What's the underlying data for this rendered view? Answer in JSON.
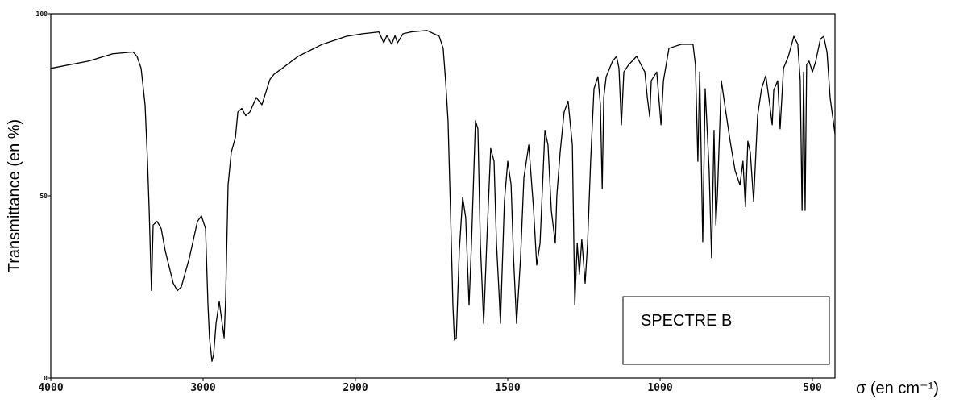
{
  "chart_data": {
    "type": "line",
    "xlabel": "σ (en cm⁻¹)",
    "ylabel": "Transmittance (en %)",
    "annotation": "SPECTRE B",
    "color": "#000000",
    "xlim": [
      4000,
      426
    ],
    "ylim": [
      0,
      100
    ],
    "xticks": [
      4000,
      3000,
      2000,
      1500,
      1000,
      500
    ],
    "yticks": [
      0,
      50,
      100
    ],
    "xscale_change": 2000,
    "xscale_factor": 2,
    "x": [
      4000,
      3751,
      3593,
      3460,
      3434,
      3407,
      3381,
      3365,
      3354,
      3344,
      3339,
      3328,
      3302,
      3275,
      3249,
      3196,
      3169,
      3143,
      3090,
      3037,
      3011,
      2984,
      2968,
      2958,
      2942,
      2931,
      2915,
      2894,
      2878,
      2862,
      2852,
      2836,
      2815,
      2788,
      2772,
      2746,
      2720,
      2693,
      2651,
      2614,
      2561,
      2534,
      2481,
      2376,
      2217,
      2058,
      1976,
      1923,
      1907,
      1897,
      1881,
      1870,
      1862,
      1844,
      1817,
      1765,
      1725,
      1712,
      1704,
      1696,
      1688,
      1680,
      1675,
      1669,
      1659,
      1648,
      1638,
      1627,
      1619,
      1606,
      1598,
      1590,
      1579,
      1569,
      1556,
      1545,
      1537,
      1529,
      1524,
      1511,
      1500,
      1489,
      1481,
      1471,
      1458,
      1447,
      1431,
      1415,
      1405,
      1394,
      1378,
      1368,
      1357,
      1344,
      1339,
      1328,
      1315,
      1302,
      1288,
      1280,
      1272,
      1265,
      1257,
      1246,
      1238,
      1228,
      1217,
      1204,
      1196,
      1190,
      1185,
      1177,
      1156,
      1143,
      1135,
      1127,
      1119,
      1103,
      1077,
      1050,
      1042,
      1034,
      1029,
      1011,
      997,
      989,
      971,
      931,
      892,
      884,
      876,
      870,
      860,
      852,
      839,
      831,
      823,
      817,
      812,
      799,
      786,
      770,
      754,
      738,
      728,
      720,
      712,
      704,
      693,
      680,
      667,
      653,
      640,
      632,
      627,
      614,
      606,
      595,
      579,
      561,
      548,
      540,
      534,
      529,
      524,
      519,
      511,
      500,
      489,
      474,
      463,
      452,
      442,
      426
    ],
    "values": [
      85,
      87,
      89,
      89.5,
      88.3,
      85,
      75,
      59.5,
      46,
      31,
      24,
      42,
      43,
      41,
      35,
      26,
      24,
      25,
      33,
      43,
      44.5,
      41,
      20,
      11,
      4.6,
      6.4,
      15,
      21,
      16,
      11,
      22,
      53,
      62,
      66,
      73,
      74,
      72,
      73,
      77,
      75,
      82,
      83.4,
      85,
      88.3,
      91.6,
      93.8,
      94.5,
      95,
      92,
      94,
      91.6,
      94,
      92,
      94.5,
      95,
      95.4,
      93.8,
      90.5,
      81.6,
      70.6,
      46,
      20,
      10.4,
      11,
      35,
      49.6,
      44,
      20,
      37,
      70.6,
      68.4,
      37,
      15,
      37,
      63,
      59.5,
      37,
      24,
      15,
      48.5,
      59.5,
      53,
      33,
      15,
      33,
      55,
      64,
      46,
      31,
      37,
      68,
      64,
      46,
      37,
      50,
      62,
      73,
      76,
      64,
      20,
      37,
      28.5,
      38,
      26,
      37,
      59.5,
      79.4,
      82.7,
      75,
      52,
      77,
      82.7,
      87,
      88.3,
      85,
      69.5,
      84,
      86,
      88.3,
      84,
      77,
      71.7,
      81.6,
      84,
      69.5,
      81.6,
      90.5,
      91.6,
      91.6,
      86,
      59.5,
      84,
      37.4,
      79.4,
      57,
      33,
      68,
      42,
      50,
      81.6,
      74,
      65,
      57,
      53,
      59.5,
      47,
      65,
      62,
      48.5,
      72,
      79.4,
      83,
      75,
      69.5,
      79,
      81.6,
      68.4,
      85,
      88.3,
      93.8,
      91.6,
      81.6,
      46,
      84,
      46,
      86,
      87,
      84,
      87,
      93,
      93.8,
      89.4,
      77,
      67
    ]
  }
}
